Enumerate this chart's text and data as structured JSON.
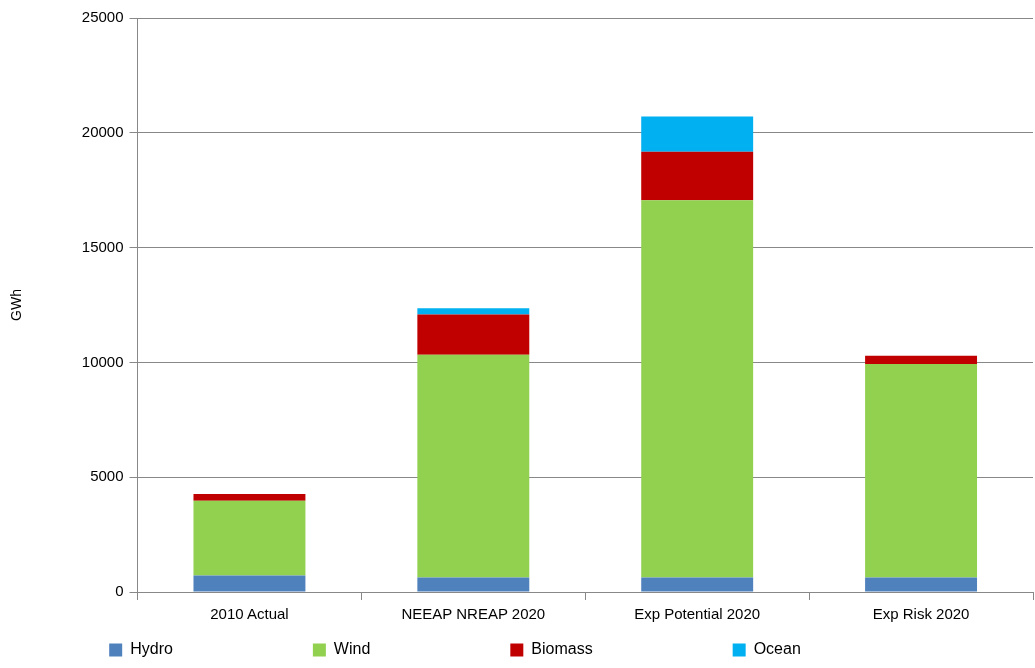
{
  "chart_data": {
    "type": "bar",
    "stacked": true,
    "ylabel": "GWh",
    "categories": [
      "2010 Actual",
      "NEEAP NREAP 2020",
      "Exp Potential 2020",
      "Exp Risk 2020"
    ],
    "series": [
      {
        "name": "Hydro",
        "color": "#4f81bd",
        "values": [
          720,
          630,
          630,
          630
        ]
      },
      {
        "name": "Wind",
        "color": "#92d050",
        "values": [
          3250,
          9700,
          16430,
          9300
        ]
      },
      {
        "name": "Biomass",
        "color": "#c00000",
        "values": [
          300,
          1760,
          2120,
          360
        ]
      },
      {
        "name": "Ocean",
        "color": "#00b0f0",
        "values": [
          0,
          270,
          1530,
          0
        ]
      }
    ],
    "ylim": [
      0,
      25000
    ],
    "yticks": [
      0,
      5000,
      10000,
      15000,
      20000,
      25000
    ],
    "grid": "y",
    "legend": "bottom"
  }
}
